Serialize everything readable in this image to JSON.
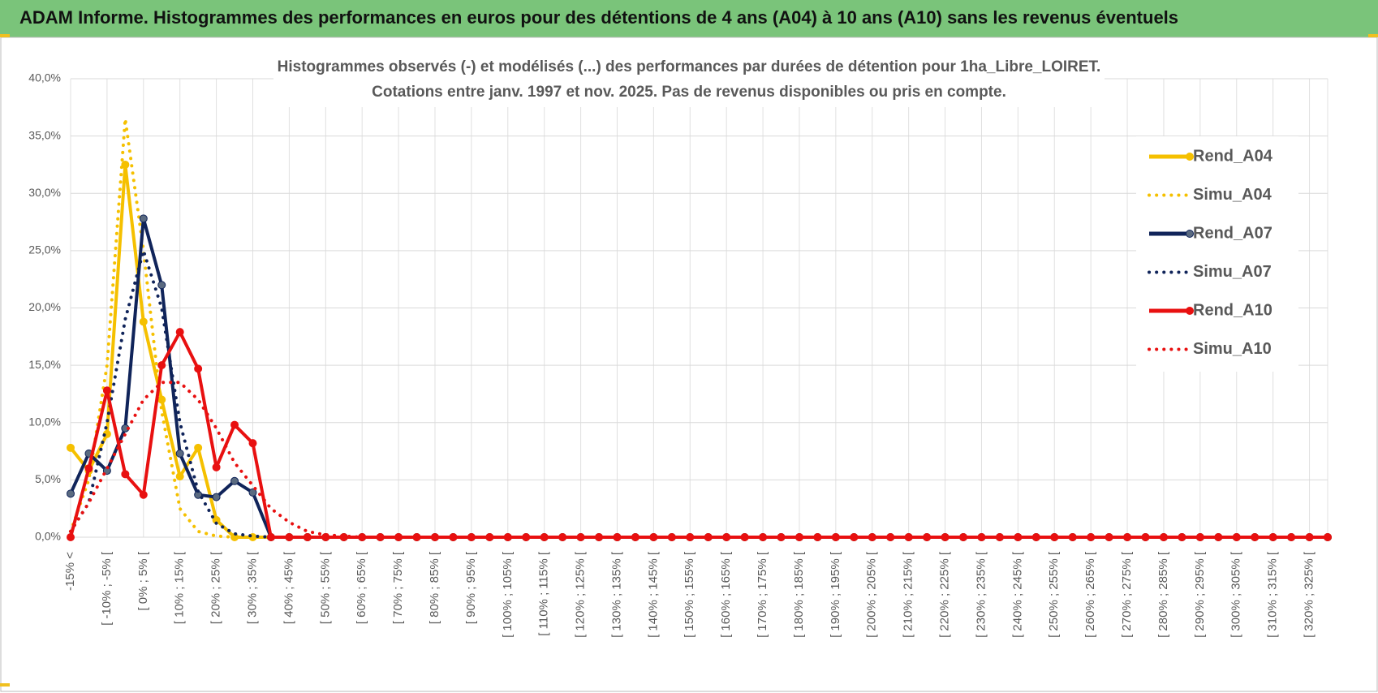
{
  "header": {
    "title": "ADAM Informe. Histogrammes des performances en euros pour des détentions de 4 ans (A04) à 10 ans (A10) sans les revenus éventuels"
  },
  "chart_data": {
    "type": "line",
    "title": "Histogrammes observés (-) et modélisés (...) des performances par durées de détention pour 1ha_Libre_LOIRET.",
    "subtitle": "Cotations entre janv. 1997 et nov. 2025. Pas de revenus disponibles ou pris en compte.",
    "categories": [
      "-15% <",
      null,
      "[ -10% ; -5% [",
      null,
      "[ 0% ; 5% [",
      null,
      "[ 10% ; 15% [",
      null,
      "[ 20% ; 25% [",
      null,
      "[ 30% ; 35% [",
      null,
      "[ 40% ; 45% [",
      null,
      "[ 50% ; 55% [",
      null,
      "[ 60% ; 65% [",
      null,
      "[ 70% ; 75% [",
      null,
      "[ 80% ; 85% [",
      null,
      "[ 90% ; 95% [",
      null,
      "[ 100% ; 105% [",
      null,
      "[ 110% ; 115% [",
      null,
      "[ 120% ; 125% [",
      null,
      "[ 130% ; 135% [",
      null,
      "[ 140% ; 145% [",
      null,
      "[ 150% ; 155% [",
      null,
      "[ 160% ; 165% [",
      null,
      "[ 170% ; 175% [",
      null,
      "[ 180% ; 185% [",
      null,
      "[ 190% ; 195% [",
      null,
      "[ 200% ; 205% [",
      null,
      "[ 210% ; 215% [",
      null,
      "[ 220% ; 225% [",
      null,
      "[ 230% ; 235% [",
      null,
      "[ 240% ; 245% [",
      null,
      "[ 250% ; 255% [",
      null,
      "[ 260% ; 265% [",
      null,
      "[ 270% ; 275% [",
      null,
      "[ 280% ; 285% [",
      null,
      "[ 290% ; 295% [",
      null,
      "[ 300% ; 305% [",
      null,
      "[ 310% ; 315% [",
      null,
      "[ 320% ; 325% [",
      null
    ],
    "series": [
      {
        "name": "Rend_A04",
        "color": "#f5c000",
        "dash": "solid",
        "markers": true,
        "values": [
          7.8,
          5.8,
          9,
          32.5,
          18.8,
          12,
          5.3,
          7.8,
          1.5,
          0,
          0,
          0,
          0,
          0,
          0,
          0,
          0,
          0,
          0,
          0,
          0,
          0,
          0,
          0,
          0,
          0,
          0,
          0,
          0,
          0,
          0,
          0,
          0,
          0,
          0,
          0,
          0,
          0,
          0,
          0,
          0,
          0,
          0,
          0,
          0,
          0,
          0,
          0,
          0,
          0,
          0,
          0,
          0,
          0,
          0,
          0,
          0,
          0,
          0,
          0,
          0,
          0,
          0,
          0,
          0,
          0,
          0,
          0,
          0,
          0
        ]
      },
      {
        "name": "Simu_A04",
        "color": "#f5c000",
        "dash": "dotted",
        "markers": false,
        "values": [
          0.5,
          5,
          15,
          36.5,
          25,
          11,
          2.5,
          0.5,
          0.1,
          0,
          0,
          0,
          0,
          0,
          0,
          0,
          0,
          0,
          0,
          0,
          0,
          0,
          0,
          0,
          0,
          0,
          0,
          0,
          0,
          0,
          0,
          0,
          0,
          0,
          0,
          0,
          0,
          0,
          0,
          0,
          0,
          0,
          0,
          0,
          0,
          0,
          0,
          0,
          0,
          0,
          0,
          0,
          0,
          0,
          0,
          0,
          0,
          0,
          0,
          0,
          0,
          0,
          0,
          0,
          0,
          0,
          0,
          0,
          0,
          0
        ]
      },
      {
        "name": "Rend_A07",
        "color": "#10245a",
        "dash": "solid",
        "markers": true,
        "values": [
          3.8,
          7.3,
          5.8,
          9.5,
          27.8,
          22,
          7.3,
          3.7,
          3.5,
          4.9,
          3.9,
          0,
          0,
          0,
          0,
          0,
          0,
          0,
          0,
          0,
          0,
          0,
          0,
          0,
          0,
          0,
          0,
          0,
          0,
          0,
          0,
          0,
          0,
          0,
          0,
          0,
          0,
          0,
          0,
          0,
          0,
          0,
          0,
          0,
          0,
          0,
          0,
          0,
          0,
          0,
          0,
          0,
          0,
          0,
          0,
          0,
          0,
          0,
          0,
          0,
          0,
          0,
          0,
          0,
          0,
          0,
          0,
          0,
          0,
          0
        ]
      },
      {
        "name": "Simu_A07",
        "color": "#10245a",
        "dash": "dotted",
        "markers": false,
        "values": [
          0.5,
          3,
          10,
          19,
          25,
          20,
          10,
          4,
          1.2,
          0.3,
          0.1,
          0,
          0,
          0,
          0,
          0,
          0,
          0,
          0,
          0,
          0,
          0,
          0,
          0,
          0,
          0,
          0,
          0,
          0,
          0,
          0,
          0,
          0,
          0,
          0,
          0,
          0,
          0,
          0,
          0,
          0,
          0,
          0,
          0,
          0,
          0,
          0,
          0,
          0,
          0,
          0,
          0,
          0,
          0,
          0,
          0,
          0,
          0,
          0,
          0,
          0,
          0,
          0,
          0,
          0,
          0,
          0,
          0,
          0,
          0
        ]
      },
      {
        "name": "Rend_A10",
        "color": "#e81010",
        "dash": "solid",
        "markers": true,
        "values": [
          0,
          6,
          12.8,
          5.5,
          3.7,
          15,
          17.9,
          14.7,
          6.1,
          9.8,
          8.2,
          0,
          0,
          0,
          0,
          0,
          0,
          0,
          0,
          0,
          0,
          0,
          0,
          0,
          0,
          0,
          0,
          0,
          0,
          0,
          0,
          0,
          0,
          0,
          0,
          0,
          0,
          0,
          0,
          0,
          0,
          0,
          0,
          0,
          0,
          0,
          0,
          0,
          0,
          0,
          0,
          0,
          0,
          0,
          0,
          0,
          0,
          0,
          0,
          0,
          0,
          0,
          0,
          0,
          0,
          0,
          0,
          0,
          0,
          0
        ]
      },
      {
        "name": "Simu_A10",
        "color": "#e81010",
        "dash": "dotted",
        "markers": false,
        "values": [
          0.5,
          3,
          6,
          9,
          12,
          13.5,
          13.5,
          12,
          9.5,
          6.5,
          4.5,
          2.5,
          1.3,
          0.5,
          0.2,
          0.1,
          0,
          0,
          0,
          0,
          0,
          0,
          0,
          0,
          0,
          0,
          0,
          0,
          0,
          0,
          0,
          0,
          0,
          0,
          0,
          0,
          0,
          0,
          0,
          0,
          0,
          0,
          0,
          0,
          0,
          0,
          0,
          0,
          0,
          0,
          0,
          0,
          0,
          0,
          0,
          0,
          0,
          0,
          0,
          0,
          0,
          0,
          0,
          0,
          0,
          0,
          0,
          0,
          0,
          0
        ]
      }
    ],
    "ylim": [
      0,
      40
    ],
    "yticks": [
      {
        "value": 0,
        "label": "0,0%"
      },
      {
        "value": 5,
        "label": "5,0%"
      },
      {
        "value": 10,
        "label": "10,0%"
      },
      {
        "value": 15,
        "label": "15,0%"
      },
      {
        "value": 20,
        "label": "20,0%"
      },
      {
        "value": 25,
        "label": "25,0%"
      },
      {
        "value": 30,
        "label": "30,0%"
      },
      {
        "value": 35,
        "label": "35,0%"
      },
      {
        "value": 40,
        "label": "40,0%"
      }
    ],
    "grid": true,
    "legend": "right"
  }
}
